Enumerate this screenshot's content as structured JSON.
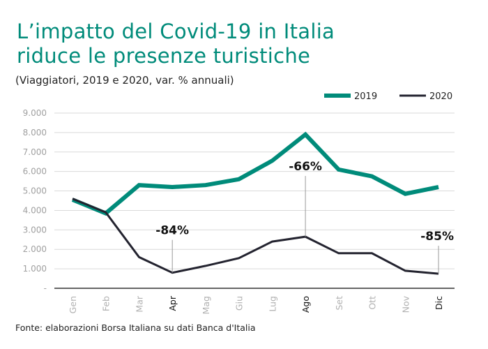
{
  "header": {
    "title_line1": "L’impatto del Covid-19 in Italia",
    "title_line2": "riduce le presenze turistiche",
    "subtitle": "(Viaggiatori, 2019 e 2020, var. % annuali)"
  },
  "footer": {
    "source": "Fonte: elaborazioni Borsa Italiana su dati Banca d'Italia"
  },
  "colors": {
    "series_2019": "#008b7a",
    "series_2020": "#23232f",
    "grid": "#d9d9d9",
    "axis": "#666666"
  },
  "chart_data": {
    "type": "line",
    "title": "L’impatto del Covid-19 in Italia riduce le presenze turistiche",
    "subtitle": "(Viaggiatori, 2019 e 2020, var. % annuali)",
    "xlabel": "",
    "ylabel": "",
    "categories": [
      "Gen",
      "Feb",
      "Mar",
      "Apr",
      "Mag",
      "Giu",
      "Lug",
      "Ago",
      "Set",
      "Ott",
      "Nov",
      "Dic"
    ],
    "highlighted_categories": [
      "Apr",
      "Ago",
      "Dic"
    ],
    "yticks": [
      "-",
      "1.000",
      "2.000",
      "3.000",
      "4.000",
      "5.000",
      "6.000",
      "7.000",
      "8.000",
      "9.000"
    ],
    "ylim": [
      0,
      9000
    ],
    "grid": true,
    "legend_position": "top-right",
    "series": [
      {
        "name": "2019",
        "values": [
          4550,
          3850,
          5300,
          5200,
          5300,
          5600,
          6550,
          7900,
          6100,
          5750,
          4850,
          5200
        ]
      },
      {
        "name": "2020",
        "values": [
          4600,
          3900,
          1600,
          800,
          1150,
          1550,
          2400,
          2650,
          1800,
          1800,
          900,
          750
        ]
      }
    ],
    "annotations": [
      {
        "category": "Apr",
        "series": "2020",
        "text": "-84%"
      },
      {
        "category": "Ago",
        "series": "2020",
        "text": "-66%"
      },
      {
        "category": "Dic",
        "series": "2020",
        "text": "-85%"
      }
    ]
  }
}
